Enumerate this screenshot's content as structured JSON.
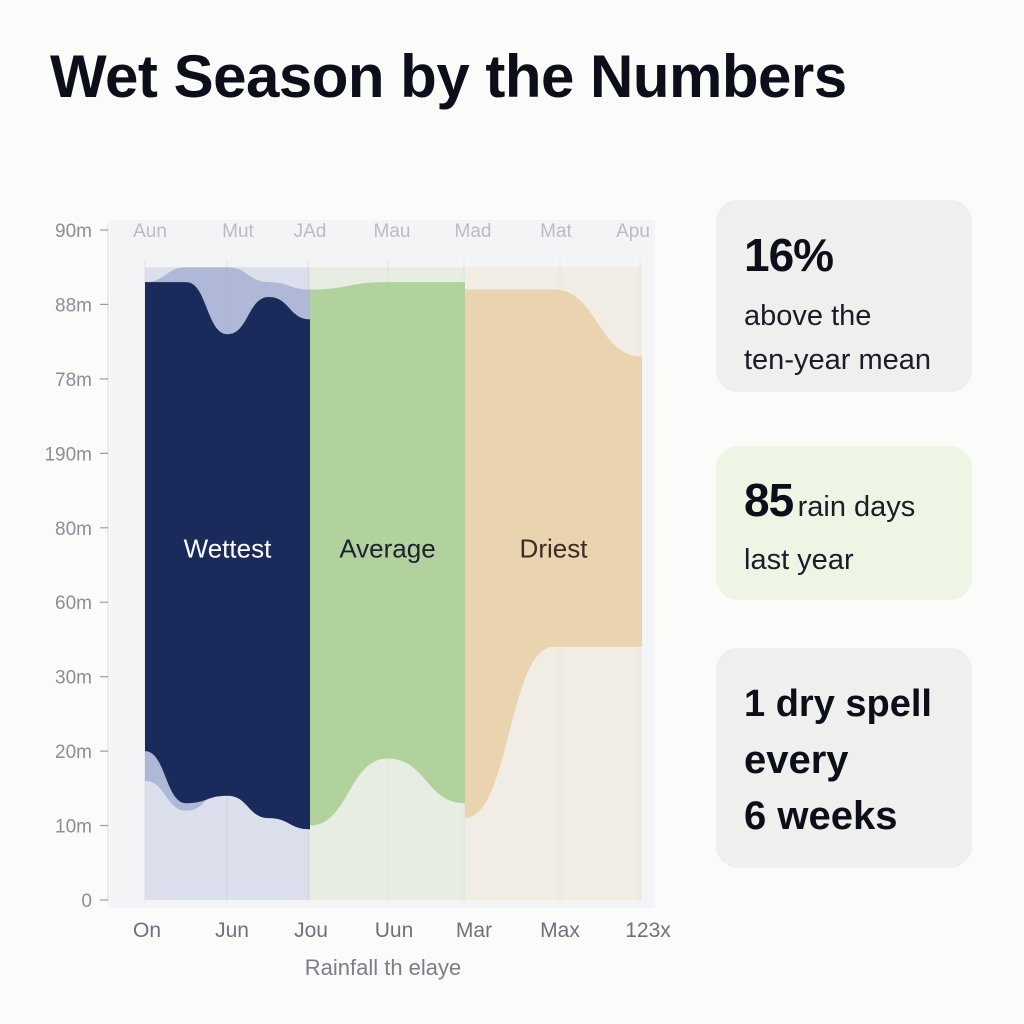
{
  "header": {
    "title": "Wet Season by the Numbers"
  },
  "chart_data": {
    "type": "area",
    "title": "Wet Season by the Numbers",
    "xlabel": "Rainfall th elaye",
    "ylabel": "",
    "y_ticks": [
      "0",
      "10m",
      "20m",
      "30m",
      "60m",
      "80m",
      "190m",
      "78m",
      "88m",
      "90m"
    ],
    "x_ticks_top": [
      "Aun",
      "Mut",
      "JAd",
      "Mau",
      "Mad",
      "Mat",
      "Apu"
    ],
    "x_ticks_bottom": [
      "On",
      "Jun",
      "Jou",
      "Uun",
      "Mar",
      "Max",
      "123x"
    ],
    "zones": [
      {
        "label": "Wettest",
        "color": "#1a2a5a",
        "upper": [
          8.3,
          8.3,
          7.6,
          8.1,
          7.8
        ],
        "lower": [
          2.0,
          1.3,
          1.4,
          1.1,
          0.95
        ]
      },
      {
        "label": "Average",
        "color": "#a8cc90",
        "upper": [
          8.2,
          8.3,
          8.3
        ],
        "lower": [
          1.0,
          1.9,
          1.3
        ]
      },
      {
        "label": "Driest",
        "color": "#e9cfa6",
        "upper": [
          8.2,
          8.2,
          7.3
        ],
        "lower": [
          1.1,
          3.4,
          3.4
        ]
      }
    ],
    "grid": true,
    "legend": "none"
  },
  "cards": [
    {
      "big": "16%",
      "lines": [
        "above the",
        "ten-year mean"
      ],
      "color": "#efefee"
    },
    {
      "big": "85",
      "inline": "rain days",
      "lines": [
        "last year"
      ],
      "color": "#eef5e4"
    },
    {
      "lines": [
        "1 dry spell",
        "every",
        "6 weeks"
      ],
      "color": "#efefee"
    }
  ]
}
